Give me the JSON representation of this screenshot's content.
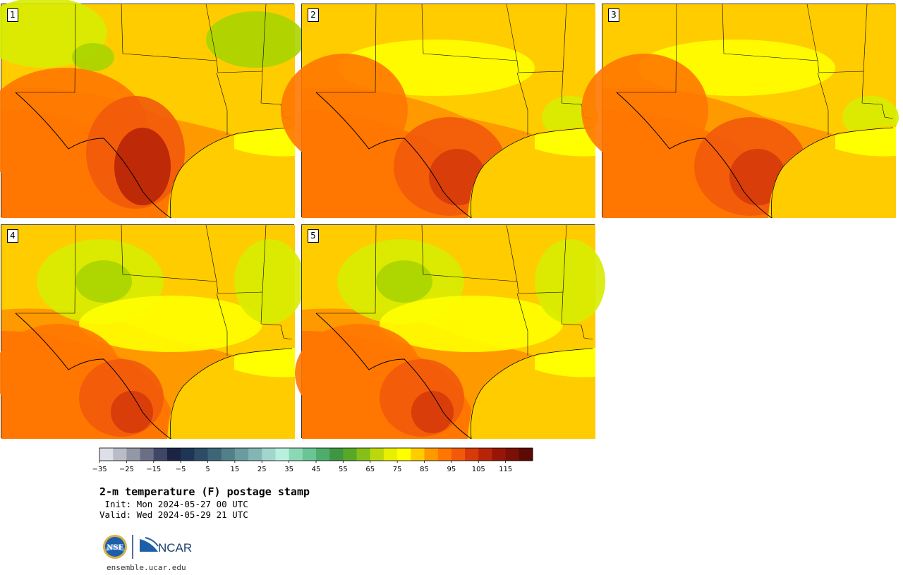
{
  "colors": {
    "scale": [
      "#dde0e6",
      "#b9bcc7",
      "#9497a6",
      "#6a6f86",
      "#3f4766",
      "#1a2545",
      "#1f3556",
      "#2d4c66",
      "#3d6578",
      "#528088",
      "#6a9b9e",
      "#83b5b4",
      "#a2d6cc",
      "#b8f0df",
      "#8ad9b4",
      "#6ac494",
      "#4fad6c",
      "#3f9642",
      "#58a828",
      "#86bf18",
      "#bcd80c",
      "#e8ef00",
      "#ffff00",
      "#ffcc00",
      "#ff9900",
      "#ff7700",
      "#f25a0a",
      "#d63a0a",
      "#b82408",
      "#981608",
      "#7a1006",
      "#5c0a04"
    ],
    "border": "#000000"
  },
  "panels": [
    {
      "label": "1",
      "theme": "hot"
    },
    {
      "label": "2",
      "theme": "warm"
    },
    {
      "label": "3",
      "theme": "warm"
    },
    {
      "label": "4",
      "theme": "cool"
    },
    {
      "label": "5",
      "theme": "cool"
    }
  ],
  "colorbar": {
    "tick_labels": [
      "−35",
      "−25",
      "−15",
      "−5",
      "5",
      "15",
      "25",
      "35",
      "45",
      "55",
      "65",
      "75",
      "85",
      "95",
      "105",
      "115"
    ]
  },
  "title": "2-m temperature (F) postage stamp",
  "init": " Init: Mon 2024-05-27 00 UTC",
  "valid": "Valid: Wed 2024-05-29 21 UTC",
  "logos": {
    "nsf": "NSF",
    "ncar": "NCAR"
  },
  "url": "ensemble.ucar.edu"
}
